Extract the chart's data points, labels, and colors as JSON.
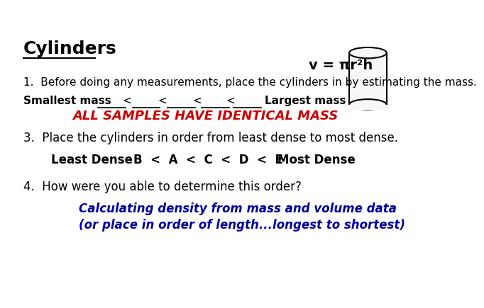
{
  "title": "Cylinders",
  "formula": "v = πr²h",
  "line1": "1.  Before doing any measurements, place the cylinders in by estimating the mass.",
  "line2_label": "Smallest mass",
  "line2_end": "Largest mass",
  "line3": "ALL SAMPLES HAVE IDENTICAL MASS",
  "line4": "3.  Place the cylinders in order from least dense to most dense.",
  "line5_left": "Least Dense",
  "line5_order": "B  <  A  <  C  <  D  <  E",
  "line5_right": "Most Dense",
  "line6": "4.  How were you able to determine this order?",
  "line7a": "Calculating density from mass and volume data",
  "line7b": "(or place in order of length...longest to shortest)",
  "bg_color": "#ffffff",
  "title_color": "#000000",
  "text_color": "#000000",
  "red_color": "#cc0000",
  "blue_color": "#000099",
  "cylinder_edge": "#000000",
  "cylinder_face": "#f8f8f8",
  "underline_color": "#000000"
}
